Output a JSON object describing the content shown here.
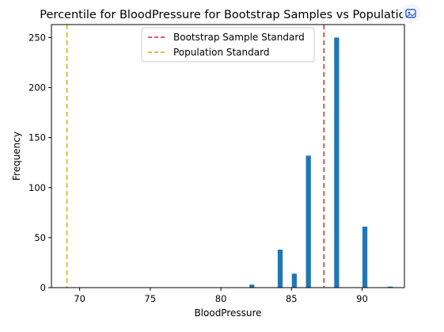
{
  "chart_data": {
    "type": "bar",
    "title": "Percentile for BloodPressure for Bootstrap Samples vs Population",
    "xlabel": "BloodPressure",
    "ylabel": "Frequency",
    "xlim": [
      68.0,
      93.0
    ],
    "ylim": [
      0,
      263
    ],
    "xticks": [
      70,
      75,
      80,
      85,
      90
    ],
    "yticks": [
      0,
      50,
      100,
      150,
      200,
      250
    ],
    "bar_width": 0.35,
    "bars": [
      {
        "x": 82.2,
        "value": 3
      },
      {
        "x": 84.2,
        "value": 38
      },
      {
        "x": 85.2,
        "value": 14
      },
      {
        "x": 86.2,
        "value": 132
      },
      {
        "x": 88.2,
        "value": 250
      },
      {
        "x": 90.2,
        "value": 61
      },
      {
        "x": 92.0,
        "value": 1
      }
    ],
    "bar_color": "#1f77b4",
    "reference_lines": [
      {
        "name": "Bootstrap Sample Standard",
        "x": 87.3,
        "color": "#d62728",
        "style": "dashed"
      },
      {
        "name": "Population Standard",
        "x": 69.1,
        "color": "#c8b400",
        "style": "dashed"
      }
    ],
    "legend_position": "upper center",
    "grid": false
  },
  "overlay": {
    "icon": "image-icon"
  }
}
